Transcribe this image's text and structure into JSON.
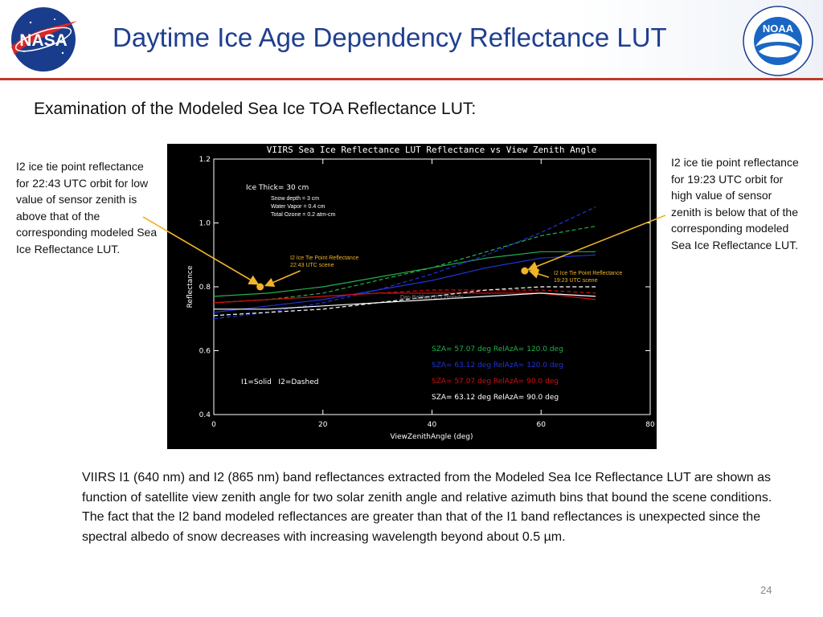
{
  "slide": {
    "title": "Daytime Ice Age Dependency Reflectance LUT",
    "subtitle": "Examination of the Modeled Sea Ice TOA Reflectance LUT:",
    "left_note": "I2 ice tie point reflectance for 22:43 UTC orbit  for low value of sensor zenith is above that of the corresponding modeled Sea Ice Reflectance LUT.",
    "right_note": "I2 ice tie point reflectance for 19:23 UTC orbit  for high value of sensor zenith is below that of the corresponding modeled Sea Ice Reflectance LUT.",
    "caption": "VIIRS I1 (640 nm) and I2 (865 nm) band reflectances extracted from the Modeled Sea Ice Reflectance LUT are shown as function of satellite view zenith angle for two solar zenith angle and relative azimuth bins that bound the scene conditions.  The fact that the  I2 band modeled reflectances are greater than that of the I1 band reflectances is unexpected since the spectral albedo of snow decreases with increasing wavelength beyond about 0.5 µm.",
    "page_number": "24",
    "nasa_logo_text": "NASA",
    "noaa_logo_text": "NOAA"
  },
  "colors": {
    "title": "#1f3f8f",
    "header_rule": "#c0392b",
    "plot_bg": "#000000",
    "arrow": "#f0b429",
    "green": "#22b14c",
    "blue": "#2233dd",
    "red": "#cc1111",
    "white": "#ffffff"
  },
  "chart_data": {
    "type": "line",
    "title": "VIIRS Sea Ice Reflectance LUT Reflectance vs View Zenith Angle",
    "xlabel": "ViewZenithAngle (deg)",
    "ylabel": "Reflectance",
    "xlim": [
      0,
      80
    ],
    "ylim": [
      0.4,
      1.2
    ],
    "xticks": [
      "0",
      "20",
      "40",
      "60",
      "80"
    ],
    "yticks": [
      "0.4",
      "0.6",
      "0.8",
      "1.0",
      "1.2"
    ],
    "info_lines": [
      "Ice Thick= 30 cm",
      "Snow depth = 3 cm",
      "Water Vapor =  0.4 cm",
      "Total Ozone = 0.2 atm-cm"
    ],
    "style_legend": "I1=Solid   I2=Dashed",
    "legend": [
      {
        "text": "SZA=  57.07  deg    RelAzA=  120.0  deg",
        "color": "#22b14c"
      },
      {
        "text": "SZA=  63.12  deg    RelAzA=  120.0  deg",
        "color": "#2233dd"
      },
      {
        "text": "SZA=  57.07  deg    RelAzA=  90.0  deg",
        "color": "#cc1111"
      },
      {
        "text": "SZA=  63.12  deg    RelAzA=  90.0  deg",
        "color": "#ffffff"
      }
    ],
    "credit": "Dan Baldwin U. Colorado",
    "series": [
      {
        "color": "#22b14c",
        "dashed": false,
        "x": [
          0,
          10,
          20,
          30,
          40,
          50,
          60,
          70
        ],
        "y": [
          0.77,
          0.78,
          0.8,
          0.83,
          0.86,
          0.89,
          0.91,
          0.91
        ]
      },
      {
        "color": "#22b14c",
        "dashed": true,
        "x": [
          0,
          10,
          20,
          30,
          40,
          50,
          60,
          70
        ],
        "y": [
          0.75,
          0.76,
          0.78,
          0.82,
          0.86,
          0.91,
          0.96,
          0.99
        ]
      },
      {
        "color": "#2233dd",
        "dashed": false,
        "x": [
          0,
          10,
          20,
          30,
          40,
          50,
          60,
          70
        ],
        "y": [
          0.72,
          0.74,
          0.76,
          0.79,
          0.82,
          0.86,
          0.89,
          0.9
        ]
      },
      {
        "color": "#2233dd",
        "dashed": true,
        "x": [
          0,
          10,
          20,
          30,
          40,
          50,
          60,
          70
        ],
        "y": [
          0.7,
          0.72,
          0.75,
          0.79,
          0.84,
          0.9,
          0.97,
          1.05
        ]
      },
      {
        "color": "#cc1111",
        "dashed": false,
        "x": [
          0,
          10,
          20,
          30,
          40,
          50,
          60,
          70
        ],
        "y": [
          0.75,
          0.76,
          0.77,
          0.78,
          0.78,
          0.78,
          0.78,
          0.76
        ]
      },
      {
        "color": "#cc1111",
        "dashed": true,
        "x": [
          0,
          10,
          20,
          30,
          40,
          50,
          60,
          70
        ],
        "y": [
          0.75,
          0.76,
          0.77,
          0.78,
          0.79,
          0.79,
          0.79,
          0.78
        ]
      },
      {
        "color": "#ffffff",
        "dashed": false,
        "x": [
          0,
          10,
          20,
          30,
          40,
          50,
          60,
          70
        ],
        "y": [
          0.73,
          0.73,
          0.74,
          0.75,
          0.76,
          0.77,
          0.78,
          0.77
        ]
      },
      {
        "color": "#ffffff",
        "dashed": true,
        "x": [
          0,
          10,
          20,
          30,
          40,
          50,
          60,
          70
        ],
        "y": [
          0.71,
          0.72,
          0.73,
          0.75,
          0.77,
          0.79,
          0.8,
          0.8
        ]
      }
    ],
    "points": [
      {
        "label": [
          "I2 Ice Tie Point Reflectance",
          "22:43 UTC scene"
        ],
        "x": 8.5,
        "y": 0.8
      },
      {
        "label": [
          "I2 Ice Tie Point Reflectance",
          "19:23 UTC scene"
        ],
        "x": 57,
        "y": 0.85
      }
    ]
  }
}
